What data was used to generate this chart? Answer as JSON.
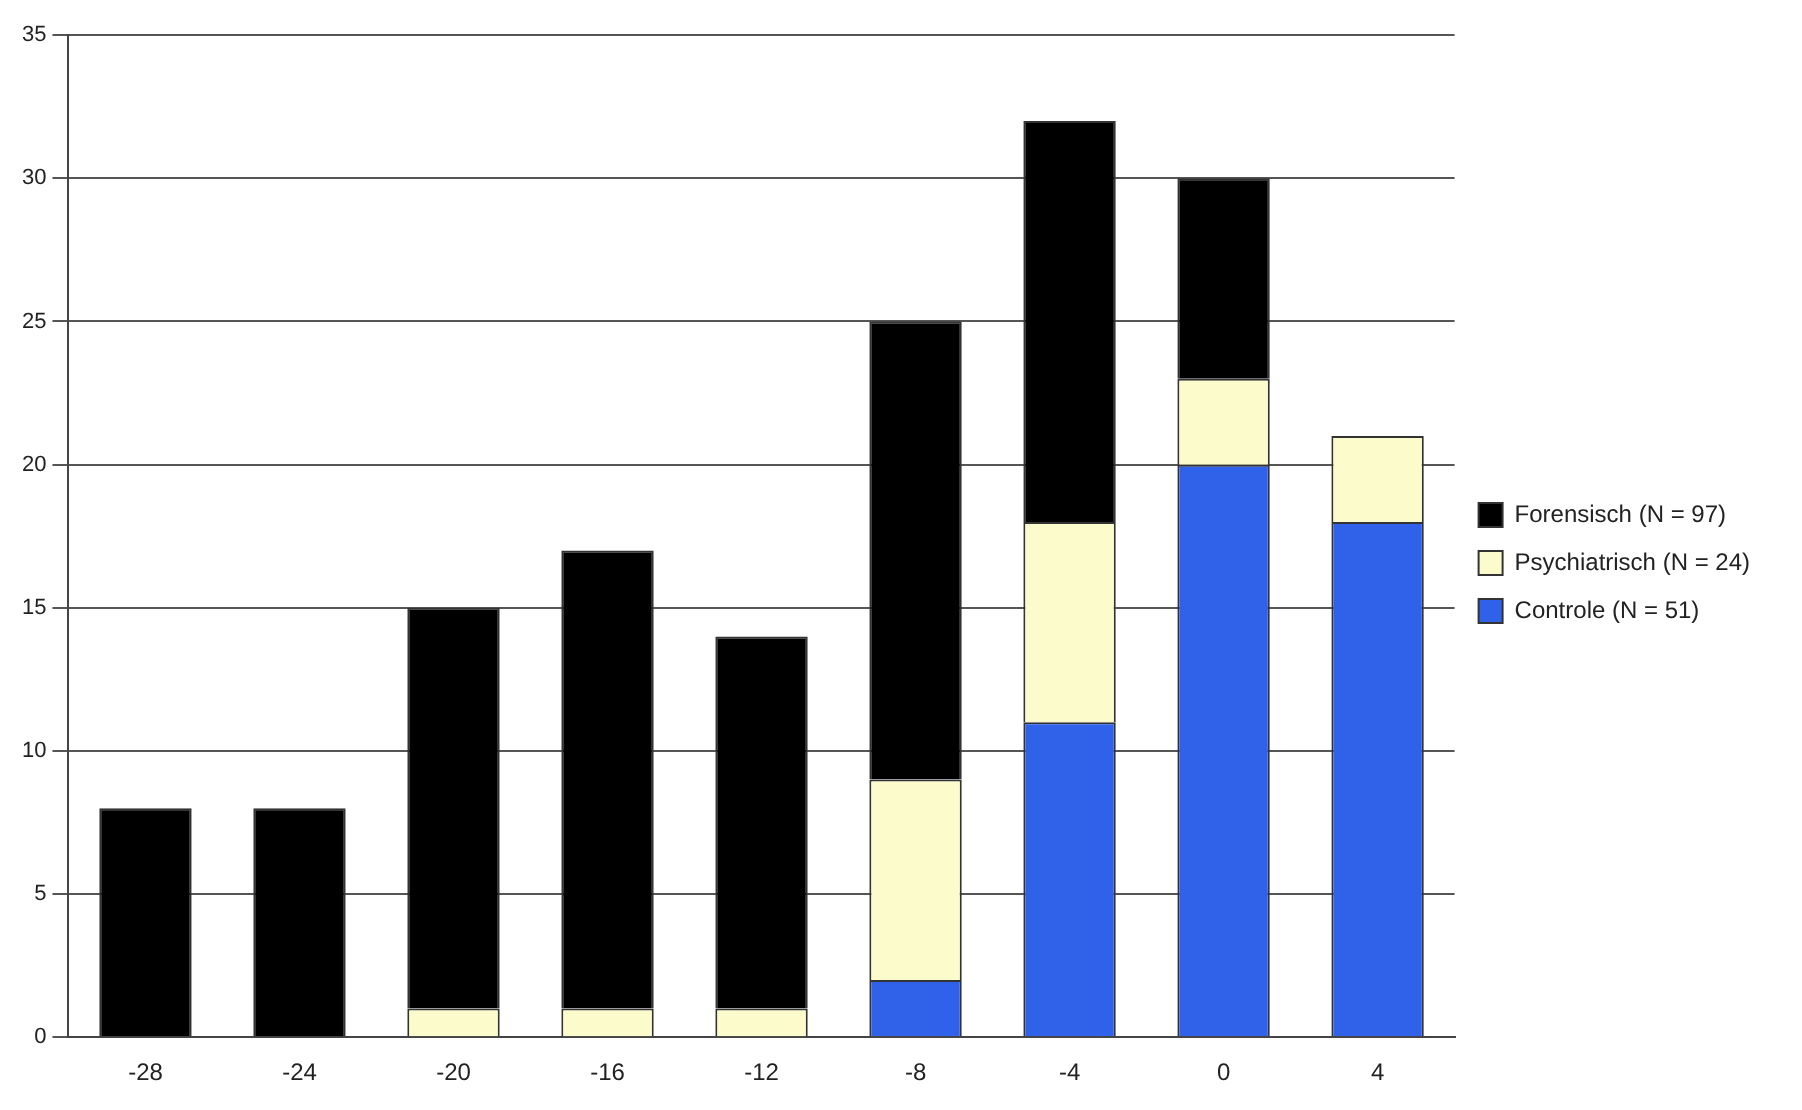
{
  "chart_data": {
    "type": "bar",
    "stacked": true,
    "categories": [
      "-28",
      "-24",
      "-20",
      "-16",
      "-12",
      "-8",
      "-4",
      "0",
      "4"
    ],
    "series": [
      {
        "name": "Controle (N = 51)",
        "color": "#2f62e8",
        "values": [
          0,
          0,
          0,
          0,
          0,
          2,
          11,
          20,
          18
        ]
      },
      {
        "name": "Psychiatrisch (N = 24)",
        "color": "#fbfbcb",
        "values": [
          0,
          0,
          1,
          1,
          1,
          7,
          7,
          3,
          3
        ]
      },
      {
        "name": "Forensisch (N = 97)",
        "color": "#000000",
        "values": [
          8,
          8,
          14,
          16,
          13,
          16,
          14,
          7,
          0
        ]
      }
    ],
    "ylim": [
      0,
      35
    ],
    "yticks": [
      0,
      5,
      10,
      15,
      20,
      25,
      30,
      35
    ],
    "grid": "y",
    "legend": "right"
  }
}
